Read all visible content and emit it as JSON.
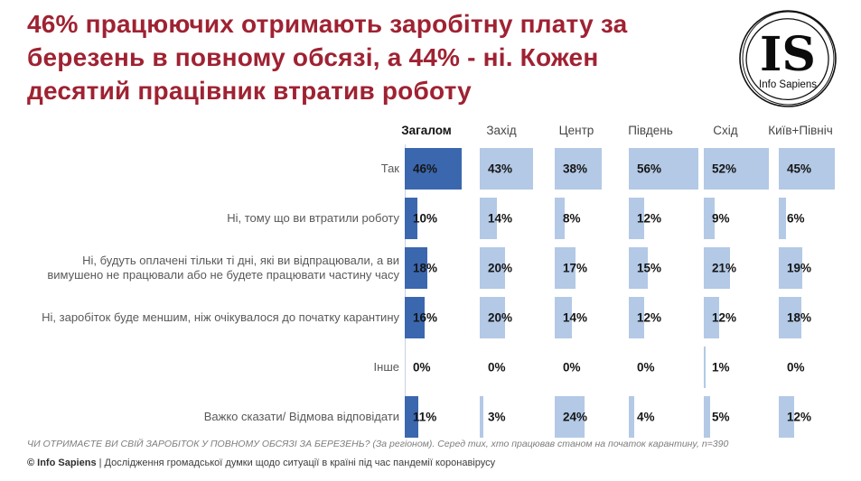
{
  "title": {
    "lines": [
      "46% працюючих отримають заробітну плату за",
      "березень в повному обсязі, а 44% - ні. Кожен",
      "десятий працівник втратив роботу"
    ]
  },
  "logo": {
    "initials": "IS",
    "name": "Info Sapiens"
  },
  "chart_data": {
    "type": "bar",
    "orientation": "horizontal",
    "title": "46% працюючих отримають заробітну плату за березень в повному обсязі, а 44% - ні. Кожен десятий працівник втратив роботу",
    "columns": [
      "Загалом",
      "Захід",
      "Центр",
      "Південь",
      "Схід",
      "Київ+Північ"
    ],
    "rows": [
      "Так",
      "Ні, тому що ви втратили роботу",
      "Ні, будуть оплачені тільки ті дні, які ви відпрацювали, а ви вимушено не працювали або не будете працювати частину часу",
      "Ні, заробіток буде меншим, ніж очікувалося до початку карантину",
      "Інше",
      "Важко сказати/ Відмова відповідати"
    ],
    "series": [
      {
        "name": "Загалом",
        "values": [
          46,
          10,
          18,
          16,
          0,
          11
        ]
      },
      {
        "name": "Захід",
        "values": [
          43,
          14,
          20,
          20,
          0,
          3
        ]
      },
      {
        "name": "Центр",
        "values": [
          38,
          8,
          17,
          14,
          0,
          24
        ]
      },
      {
        "name": "Південь",
        "values": [
          56,
          12,
          15,
          12,
          0,
          4
        ]
      },
      {
        "name": "Схід",
        "values": [
          52,
          9,
          21,
          12,
          1,
          5
        ]
      },
      {
        "name": "Київ+Північ",
        "values": [
          45,
          6,
          19,
          18,
          0,
          12
        ]
      }
    ],
    "value_suffix": "%",
    "value_range": [
      0,
      100
    ],
    "legend": "none",
    "grid": "off",
    "colors": {
      "overall_bar": "#3b67af",
      "region_bar": "#b3c9e6",
      "title_text": "#9f2232"
    }
  },
  "footnote": "ЧИ ОТРИМАЄТЕ ВИ СВІЙ ЗАРОБІТОК У ПОВНОМУ ОБСЯЗІ ЗА БЕРЕЗЕНЬ? (За регіоном). Серед тих, хто працював станом на початок карантину, n=390",
  "footer": {
    "brand": "© Info Sapiens",
    "separator": " | ",
    "text": "Дослідження громадської думки щодо ситуації в країні під час пандемії коронавірусу"
  }
}
